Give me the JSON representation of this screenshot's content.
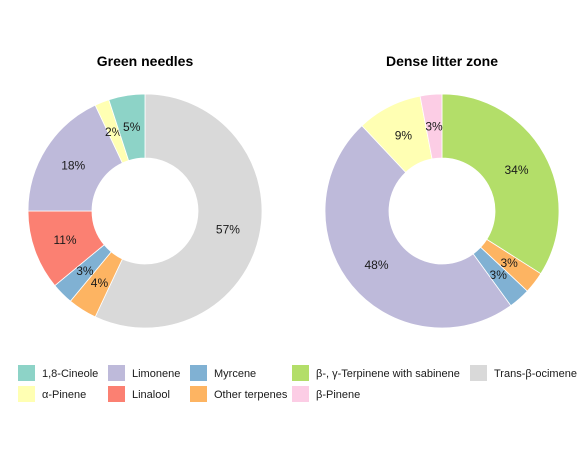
{
  "chart_data": [
    {
      "type": "pie",
      "title": "Green needles",
      "slices": [
        {
          "label": "Trans-β-ocimene",
          "value": 57,
          "display": "57%"
        },
        {
          "label": "Other terpenes",
          "value": 4,
          "display": "4%"
        },
        {
          "label": "Myrcene",
          "value": 3,
          "display": "3%"
        },
        {
          "label": "Linalool",
          "value": 11,
          "display": "11%"
        },
        {
          "label": "Limonene",
          "value": 18,
          "display": "18%"
        },
        {
          "label": "α-Pinene",
          "value": 2,
          "display": "2%"
        },
        {
          "label": "1,8-Cineole",
          "value": 5,
          "display": "5%"
        }
      ]
    },
    {
      "type": "pie",
      "title": "Dense litter zone",
      "slices": [
        {
          "label": "β-, γ-Terpinene with sabinene",
          "value": 34,
          "display": "34%"
        },
        {
          "label": "Other terpenes",
          "value": 3,
          "display": "3%"
        },
        {
          "label": "Myrcene",
          "value": 3,
          "display": "3%"
        },
        {
          "label": "Limonene",
          "value": 48,
          "display": "48%"
        },
        {
          "label": "α-Pinene",
          "value": 9,
          "display": "9%"
        },
        {
          "label": "β-Pinene",
          "value": 3,
          "display": "3%"
        }
      ]
    }
  ],
  "legend": {
    "placement": "bottom",
    "items": [
      {
        "label": "1,8-Cineole",
        "color": "#8DD3C7"
      },
      {
        "label": "α-Pinene",
        "color": "#FFFFB3"
      },
      {
        "label": "Limonene",
        "color": "#BEBADA"
      },
      {
        "label": "Linalool",
        "color": "#FB8072"
      },
      {
        "label": "Myrcene",
        "color": "#80B1D3"
      },
      {
        "label": "Other terpenes",
        "color": "#FDB462"
      },
      {
        "label": "β-, γ-Terpinene with sabinene",
        "color": "#B3DE69"
      },
      {
        "label": "β-Pinene",
        "color": "#FCCDE5"
      },
      {
        "label": "Trans-β-ocimene",
        "color": "#D9D9D9"
      }
    ]
  }
}
